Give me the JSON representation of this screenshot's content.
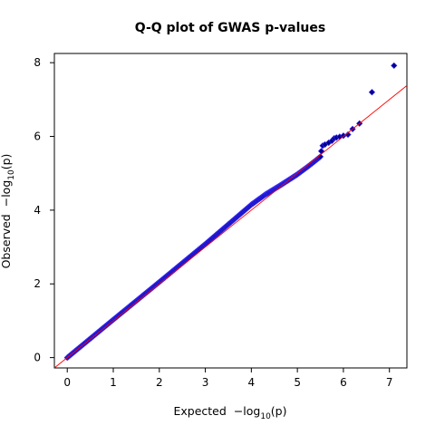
{
  "chart_data": {
    "type": "scatter",
    "title": "Q-Q plot of GWAS p-values",
    "xlabel": {
      "prefix": "Expected",
      "neg": "−log",
      "sub": "10",
      "arg": "(p)"
    },
    "ylabel": {
      "prefix": "Observed",
      "neg": "−log",
      "sub": "10",
      "arg": "(p)"
    },
    "xlim": [
      -0.28,
      7.38
    ],
    "ylim": [
      -0.28,
      8.25
    ],
    "xticks": [
      0,
      1,
      2,
      3,
      4,
      5,
      6,
      7
    ],
    "yticks": [
      0,
      2,
      4,
      6,
      8
    ],
    "grid": false,
    "reference_line": {
      "slope": 1.0,
      "intercept": 0.0,
      "color": "#ff0000"
    },
    "series": [
      {
        "marker_color": "#00008b",
        "marker": "diamond",
        "curve": {
          "x": [
            0.0,
            1.0,
            2.0,
            3.0,
            4.0,
            4.3,
            4.6,
            5.0,
            5.3,
            5.5
          ],
          "y": [
            0.0,
            1.03,
            2.05,
            3.08,
            4.15,
            4.42,
            4.65,
            4.97,
            5.25,
            5.45
          ]
        },
        "tail_points": [
          [
            5.52,
            5.6
          ],
          [
            5.55,
            5.75
          ],
          [
            5.6,
            5.78
          ],
          [
            5.68,
            5.83
          ],
          [
            5.75,
            5.88
          ],
          [
            5.8,
            5.95
          ],
          [
            5.85,
            5.97
          ],
          [
            5.92,
            5.99
          ],
          [
            6.0,
            6.02
          ],
          [
            6.1,
            6.05
          ],
          [
            6.2,
            6.2
          ],
          [
            6.35,
            6.35
          ],
          [
            6.62,
            7.2
          ],
          [
            7.1,
            7.92
          ]
        ]
      }
    ]
  }
}
